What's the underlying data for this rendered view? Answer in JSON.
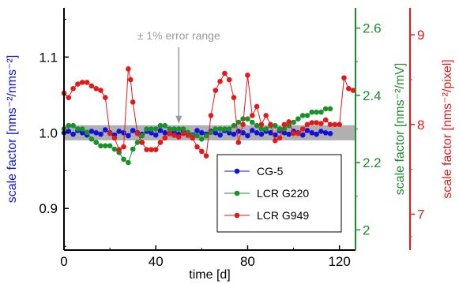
{
  "chart_data": {
    "type": "scatter",
    "x_axis": {
      "label": "time [d]",
      "range": [
        0,
        127
      ],
      "ticks": [
        "0",
        "40",
        "80",
        "120"
      ]
    },
    "y_axes": [
      {
        "id": "left",
        "title": "scale factor [nms⁻²/nms⁻²]",
        "range": [
          0.845,
          1.165
        ],
        "ticks": [
          "0.9",
          "1.0",
          "1.1"
        ],
        "color": "#1010e0"
      },
      {
        "id": "right1",
        "title": "scale factor [nms⁻²/mV]",
        "range": [
          1.94,
          2.66
        ],
        "ticks": [
          "2",
          "2.2",
          "2.4",
          "2.6"
        ],
        "color": "#1a8f2a"
      },
      {
        "id": "right2",
        "title": "scale factor [nms⁻²/pixel]",
        "range": [
          6.6,
          9.3
        ],
        "ticks": [
          "7",
          "8",
          "9"
        ],
        "color": "#e41a1a"
      }
    ],
    "error_band": {
      "y_low": 0.99,
      "y_high": 1.01,
      "color": "#b0b0b0"
    },
    "annotation": {
      "text": "± 1% error range",
      "arrow_x": 50,
      "arrow_tip_y": 1.01,
      "arrow_top_y": 1.08
    },
    "legend": {
      "position": "bottom-right",
      "entries": [
        {
          "label": "CG-5",
          "color": "#1010e0"
        },
        {
          "label": "LCR G220",
          "color": "#1a8f2a"
        },
        {
          "label": "LCR G949",
          "color": "#e41a1a"
        }
      ]
    },
    "series": [
      {
        "name": "CG-5",
        "axis": "left",
        "color": "#1010e0",
        "points": [
          [
            0,
            1.0
          ],
          [
            2,
            1.002
          ],
          [
            4,
            0.998
          ],
          [
            6,
            1.003
          ],
          [
            8,
            1.0
          ],
          [
            10,
            0.997
          ],
          [
            12,
            1.002
          ],
          [
            14,
            1.0
          ],
          [
            16,
            0.998
          ],
          [
            18,
            1.004
          ],
          [
            20,
            1.0
          ],
          [
            22,
            0.997
          ],
          [
            24,
            1.002
          ],
          [
            26,
            1.0
          ],
          [
            28,
            0.996
          ],
          [
            30,
            1.003
          ],
          [
            32,
            1.0
          ],
          [
            34,
            0.998
          ],
          [
            36,
            1.002
          ],
          [
            38,
            1.0
          ],
          [
            40,
            0.997
          ],
          [
            42,
            1.003
          ],
          [
            44,
            1.0
          ],
          [
            46,
            0.999
          ],
          [
            48,
            1.001
          ],
          [
            50,
            0.998
          ],
          [
            52,
            1.002
          ],
          [
            54,
            1.0
          ],
          [
            56,
            0.997
          ],
          [
            58,
            1.003
          ],
          [
            60,
            1.0
          ],
          [
            62,
            0.998
          ],
          [
            64,
            1.002
          ],
          [
            66,
            1.0
          ],
          [
            68,
            0.997
          ],
          [
            70,
            1.003
          ],
          [
            72,
            1.0
          ],
          [
            74,
            0.998
          ],
          [
            76,
            1.002
          ],
          [
            78,
            1.0
          ],
          [
            80,
            0.996
          ],
          [
            82,
            1.003
          ],
          [
            84,
            1.0
          ],
          [
            86,
            0.998
          ],
          [
            88,
            1.002
          ],
          [
            90,
            1.0
          ],
          [
            92,
            0.997
          ],
          [
            94,
            1.003
          ],
          [
            96,
            1.0
          ],
          [
            98,
            0.998
          ],
          [
            100,
            1.002
          ],
          [
            102,
            1.0
          ],
          [
            104,
            0.997
          ],
          [
            106,
            1.003
          ],
          [
            108,
            1.0
          ],
          [
            110,
            0.998
          ],
          [
            112,
            1.002
          ],
          [
            114,
            1.0
          ],
          [
            116,
            0.999
          ]
        ]
      },
      {
        "name": "LCR G220",
        "axis": "right1",
        "color": "#1a8f2a",
        "points": [
          [
            0,
            2.3
          ],
          [
            2,
            2.31
          ],
          [
            4,
            2.31
          ],
          [
            6,
            2.3
          ],
          [
            8,
            2.3
          ],
          [
            10,
            2.29
          ],
          [
            12,
            2.27
          ],
          [
            14,
            2.26
          ],
          [
            16,
            2.25
          ],
          [
            18,
            2.25
          ],
          [
            20,
            2.25
          ],
          [
            22,
            2.24
          ],
          [
            24,
            2.23
          ],
          [
            26,
            2.21
          ],
          [
            28,
            2.2
          ],
          [
            30,
            2.24
          ],
          [
            32,
            2.26
          ],
          [
            34,
            2.28
          ],
          [
            36,
            2.3
          ],
          [
            38,
            2.3
          ],
          [
            40,
            2.3
          ],
          [
            42,
            2.31
          ],
          [
            44,
            2.31
          ],
          [
            46,
            2.3
          ],
          [
            48,
            2.3
          ],
          [
            50,
            2.3
          ],
          [
            52,
            2.3
          ],
          [
            54,
            2.29
          ],
          [
            56,
            2.28
          ],
          [
            58,
            2.28
          ],
          [
            60,
            2.27
          ],
          [
            62,
            2.28
          ],
          [
            64,
            2.29
          ],
          [
            66,
            2.3
          ],
          [
            68,
            2.3
          ],
          [
            70,
            2.3
          ],
          [
            72,
            2.3
          ],
          [
            74,
            2.31
          ],
          [
            76,
            2.32
          ],
          [
            78,
            2.33
          ],
          [
            80,
            2.33
          ],
          [
            82,
            2.32
          ],
          [
            84,
            2.31
          ],
          [
            86,
            2.3
          ],
          [
            88,
            2.3
          ],
          [
            90,
            2.31
          ],
          [
            92,
            2.31
          ],
          [
            94,
            2.3
          ],
          [
            96,
            2.3
          ],
          [
            98,
            2.31
          ],
          [
            100,
            2.32
          ],
          [
            102,
            2.33
          ],
          [
            104,
            2.34
          ],
          [
            106,
            2.34
          ],
          [
            108,
            2.35
          ],
          [
            110,
            2.35
          ],
          [
            112,
            2.35
          ],
          [
            114,
            2.36
          ],
          [
            116,
            2.36
          ]
        ]
      },
      {
        "name": "LCR G949",
        "axis": "right2",
        "color": "#e41a1a",
        "points": [
          [
            0,
            8.35
          ],
          [
            2,
            8.3
          ],
          [
            4,
            8.4
          ],
          [
            6,
            8.45
          ],
          [
            8,
            8.47
          ],
          [
            10,
            8.47
          ],
          [
            12,
            8.43
          ],
          [
            14,
            8.4
          ],
          [
            16,
            8.38
          ],
          [
            18,
            8.3
          ],
          [
            20,
            7.9
          ],
          [
            22,
            7.85
          ],
          [
            24,
            7.72
          ],
          [
            26,
            7.75
          ],
          [
            28,
            8.62
          ],
          [
            29,
            8.5
          ],
          [
            30,
            8.25
          ],
          [
            32,
            7.9
          ],
          [
            34,
            7.8
          ],
          [
            36,
            7.72
          ],
          [
            38,
            7.72
          ],
          [
            40,
            7.72
          ],
          [
            42,
            7.8
          ],
          [
            44,
            7.85
          ],
          [
            46,
            7.9
          ],
          [
            48,
            7.88
          ],
          [
            50,
            7.86
          ],
          [
            52,
            7.9
          ],
          [
            54,
            7.88
          ],
          [
            56,
            7.85
          ],
          [
            58,
            7.75
          ],
          [
            60,
            7.7
          ],
          [
            62,
            7.65
          ],
          [
            64,
            8.1
          ],
          [
            66,
            8.38
          ],
          [
            68,
            8.48
          ],
          [
            70,
            8.57
          ],
          [
            72,
            8.5
          ],
          [
            74,
            8.3
          ],
          [
            76,
            7.8
          ],
          [
            78,
            8.0
          ],
          [
            80,
            8.55
          ],
          [
            82,
            8.1
          ],
          [
            84,
            8.2
          ],
          [
            86,
            8.0
          ],
          [
            88,
            8.1
          ],
          [
            90,
            8.0
          ],
          [
            92,
            7.82
          ],
          [
            94,
            7.85
          ],
          [
            96,
            8.0
          ],
          [
            98,
            8.03
          ],
          [
            100,
            7.9
          ],
          [
            102,
            7.9
          ],
          [
            104,
            7.95
          ],
          [
            106,
            8.0
          ],
          [
            108,
            8.02
          ],
          [
            110,
            8.02
          ],
          [
            112,
            8.01
          ],
          [
            114,
            8.05
          ],
          [
            116,
            8.0
          ],
          [
            118,
            8.0
          ],
          [
            120,
            8.0
          ],
          [
            122,
            8.52
          ],
          [
            124,
            8.4
          ],
          [
            126,
            8.38
          ]
        ]
      }
    ]
  }
}
